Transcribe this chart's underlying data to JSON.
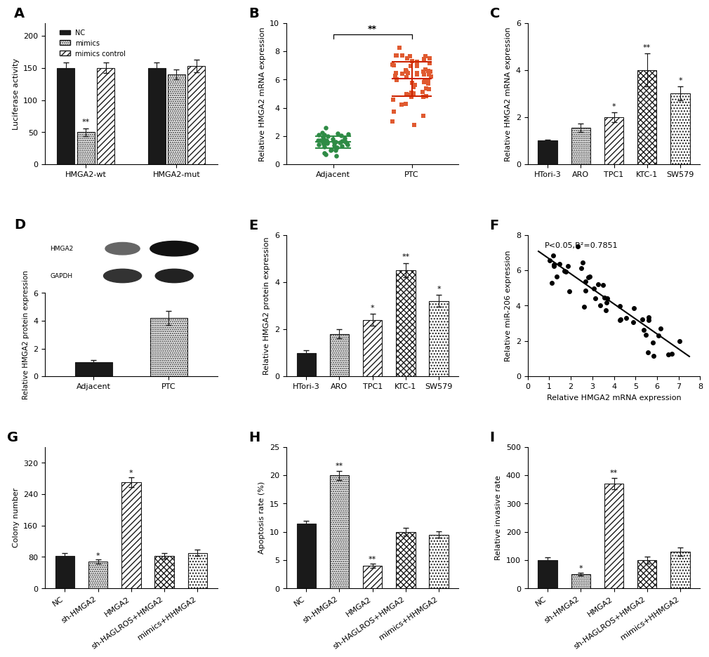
{
  "A": {
    "groups": [
      "HMGA2-wt",
      "HMGA2-mut"
    ],
    "conditions": [
      "NC",
      "mimics",
      "mimics control"
    ],
    "values": [
      [
        150,
        50,
        150
      ],
      [
        150,
        140,
        153
      ]
    ],
    "errors": [
      [
        8,
        6,
        8
      ],
      [
        8,
        8,
        10
      ]
    ],
    "ylabel": "Luciferase activity",
    "ylim": [
      0,
      220
    ],
    "yticks": [
      0,
      50,
      100,
      150,
      200
    ]
  },
  "B": {
    "adjacent_mean": 1.5,
    "adjacent_sd": 0.45,
    "ptc_mean": 6.0,
    "ptc_sd": 1.1,
    "ylabel": "Relative HMGA2 mRNA expression",
    "ylim": [
      0,
      10
    ],
    "yticks": [
      0,
      2,
      4,
      6,
      8,
      10
    ]
  },
  "C": {
    "categories": [
      "HTori-3",
      "ARO",
      "TPC1",
      "KTC-1",
      "SW579"
    ],
    "values": [
      1.0,
      1.55,
      2.0,
      4.0,
      3.0
    ],
    "errors": [
      0.05,
      0.18,
      0.2,
      0.7,
      0.3
    ],
    "ylabel": "Relative HMGA2 mRNA expression",
    "ylim": [
      0,
      6
    ],
    "yticks": [
      0,
      2,
      4,
      6
    ],
    "sig": [
      null,
      null,
      "*",
      "**",
      "*"
    ]
  },
  "D": {
    "categories": [
      "Adjacent",
      "PTC"
    ],
    "values": [
      1.0,
      4.2
    ],
    "errors": [
      0.15,
      0.5
    ],
    "ylabel": "Relative HMGA2 protein expression",
    "ylim": [
      0,
      6
    ],
    "yticks": [
      0,
      2,
      4,
      6
    ]
  },
  "E": {
    "categories": [
      "HTori-3",
      "ARO",
      "TPC1",
      "KTC-1",
      "SW579"
    ],
    "values": [
      1.0,
      1.8,
      2.4,
      4.5,
      3.2
    ],
    "errors": [
      0.1,
      0.2,
      0.25,
      0.3,
      0.25
    ],
    "ylabel": "Relative HMGA2 protein expression",
    "ylim": [
      0,
      6
    ],
    "yticks": [
      0,
      2,
      4,
      6
    ],
    "sig": [
      null,
      null,
      "*",
      "**",
      "*"
    ]
  },
  "F": {
    "xlabel": "Relative HMGA2 mRNA expression",
    "ylabel": "Relative miR-206 expression",
    "xlim": [
      0,
      8
    ],
    "ylim": [
      0,
      8
    ],
    "xticks": [
      0,
      1,
      2,
      3,
      4,
      5,
      6,
      7,
      8
    ],
    "yticks": [
      0,
      2,
      4,
      6,
      8
    ],
    "annotation": "P<0.05,R²=0.7851",
    "slope": -0.85,
    "intercept": 7.5
  },
  "G": {
    "categories": [
      "NC",
      "sh-HMGA2",
      "HMGA2",
      "sh-HAGLROS+HMGA2",
      "mimics+HHMGA2"
    ],
    "values": [
      82,
      68,
      270,
      82,
      90
    ],
    "errors": [
      7,
      5,
      12,
      7,
      8
    ],
    "ylabel": "Colony number",
    "ylim": [
      0,
      360
    ],
    "yticks": [
      0,
      80,
      160,
      240,
      320
    ],
    "sig": [
      null,
      "*",
      "*",
      null,
      null
    ]
  },
  "H": {
    "categories": [
      "NC",
      "sh-HMGA2",
      "HMGA2",
      "sh-HAGLROS+HMGA2",
      "mimics+HHMGA2"
    ],
    "values": [
      11.5,
      20.0,
      4.0,
      10.0,
      9.5
    ],
    "errors": [
      0.5,
      0.8,
      0.4,
      0.7,
      0.6
    ],
    "ylabel": "Apoptosis rate (%)",
    "ylim": [
      0,
      25
    ],
    "yticks": [
      0,
      5,
      10,
      15,
      20,
      25
    ],
    "sig": [
      null,
      "**",
      "**",
      null,
      null
    ]
  },
  "I": {
    "categories": [
      "NC",
      "sh-HMGA2",
      "HMGA2",
      "sh-HAGLROS+HMGA2",
      "mimics+HHMGA2"
    ],
    "values": [
      100,
      50,
      370,
      100,
      130
    ],
    "errors": [
      10,
      6,
      20,
      12,
      15
    ],
    "ylabel": "Relative invasive rate",
    "ylim": [
      0,
      500
    ],
    "yticks": [
      0,
      100,
      200,
      300,
      400,
      500
    ],
    "sig": [
      null,
      "*",
      "**",
      null,
      null
    ]
  },
  "colors": {
    "black": "#1a1a1a",
    "white": "#ffffff",
    "green": "#2e8b45",
    "orange_red": "#e05a30",
    "red_line": "#cc2200"
  }
}
